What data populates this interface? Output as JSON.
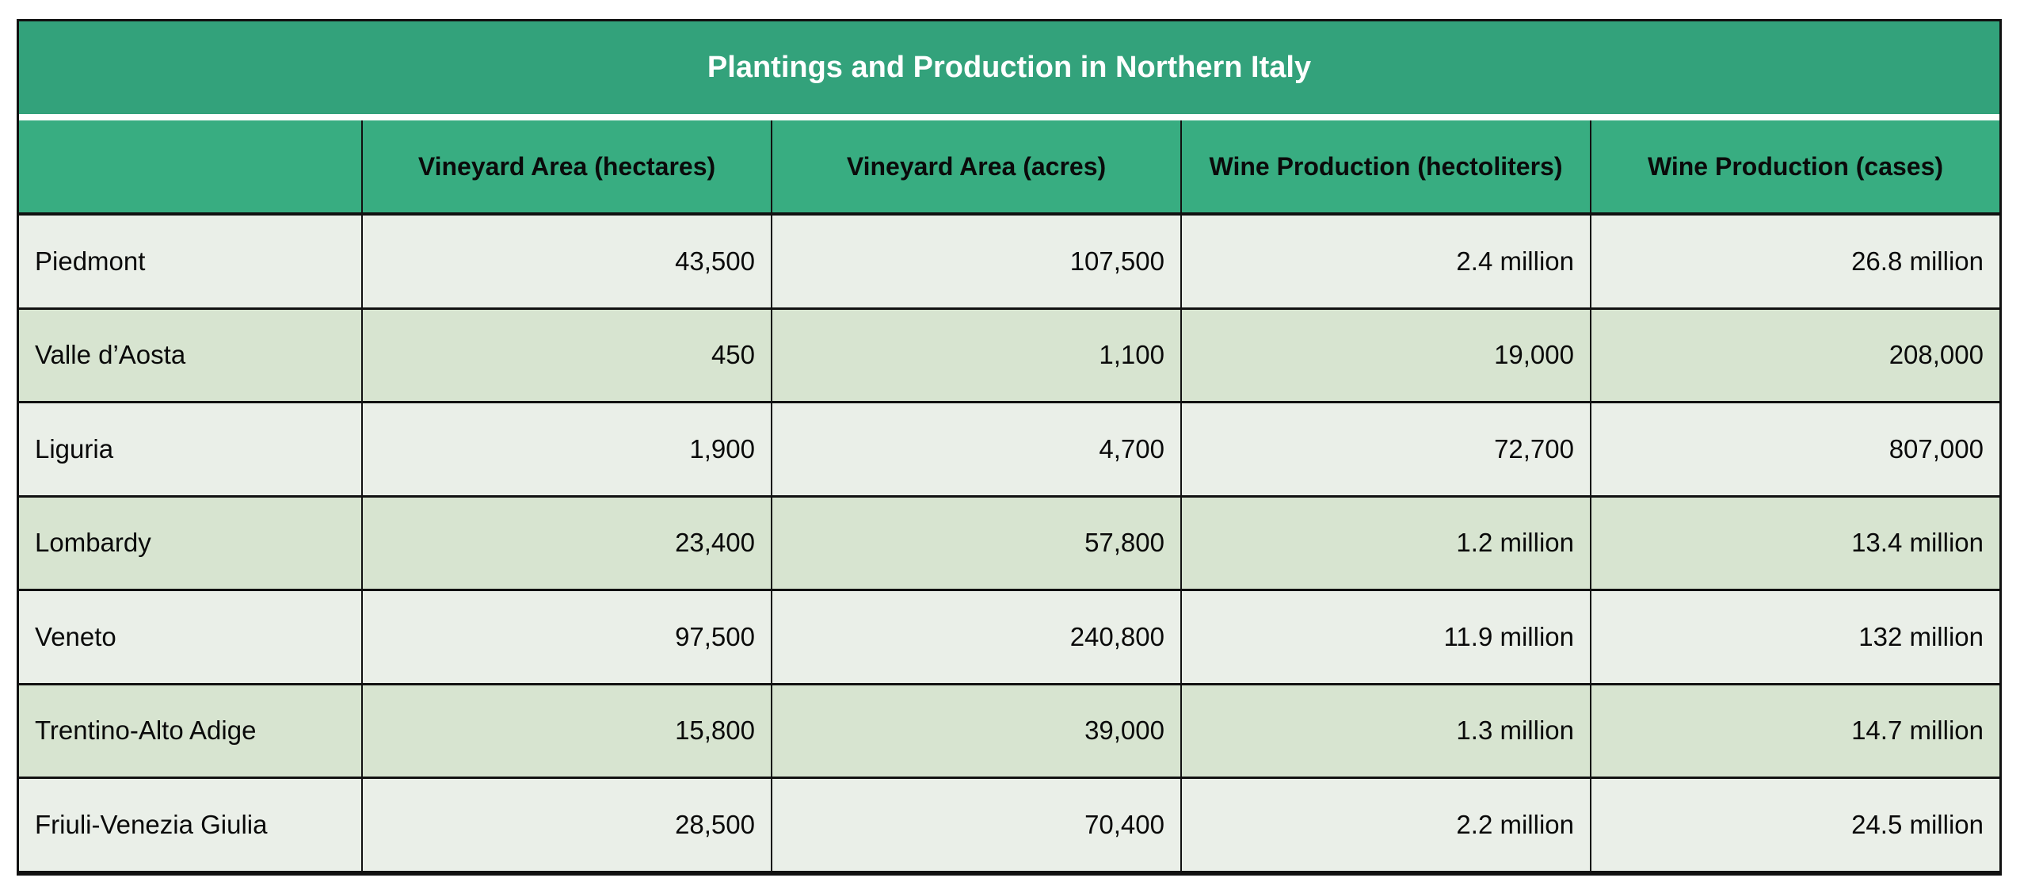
{
  "table": {
    "title": "Plantings and Production in Northern Italy",
    "columns": [
      "",
      "Vineyard Area (hectares)",
      "Vineyard Area (acres)",
      "Wine Production (hectoliters)",
      "Wine Production (cases)"
    ],
    "rows": [
      {
        "region": "Piedmont",
        "hectares": "43,500",
        "acres": "107,500",
        "hectoliters": "2.4 million",
        "cases": "26.8 million"
      },
      {
        "region": "Valle d’Aosta",
        "hectares": "450",
        "acres": "1,100",
        "hectoliters": "19,000",
        "cases": "208,000"
      },
      {
        "region": "Liguria",
        "hectares": "1,900",
        "acres": "4,700",
        "hectoliters": "72,700",
        "cases": "807,000"
      },
      {
        "region": "Lombardy",
        "hectares": "23,400",
        "acres": "57,800",
        "hectoliters": "1.2 million",
        "cases": "13.4 million"
      },
      {
        "region": "Veneto",
        "hectares": "97,500",
        "acres": "240,800",
        "hectoliters": "11.9 million",
        "cases": "132 million"
      },
      {
        "region": "Trentino-Alto Adige",
        "hectares": "15,800",
        "acres": "39,000",
        "hectoliters": "1.3 million",
        "cases": "14.7 million"
      },
      {
        "region": "Friuli-Venezia Giulia",
        "hectares": "28,500",
        "acres": "70,400",
        "hectoliters": "2.2 million",
        "cases": "24.5 million"
      }
    ]
  },
  "colors": {
    "title_band": "#33A27B",
    "header_row": "#38AD81",
    "row_light": "#EAEFE8",
    "row_dark": "#D7E4D0",
    "border": "#111111"
  }
}
